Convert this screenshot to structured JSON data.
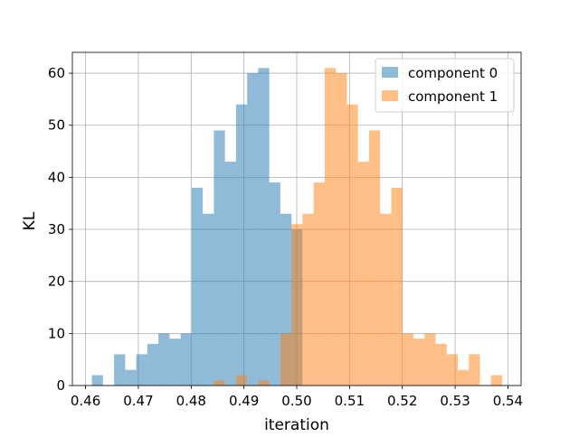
{
  "chart_data": {
    "type": "bar",
    "subtype": "overlapping-histogram",
    "xlabel": "iteration",
    "ylabel": "KL",
    "xlim": [
      0.4575,
      0.5425
    ],
    "ylim": [
      0,
      64
    ],
    "xticks": [
      0.46,
      0.47,
      0.48,
      0.49,
      0.5,
      0.51,
      0.52,
      0.53,
      0.54
    ],
    "xtick_labels": [
      "0.46",
      "0.47",
      "0.48",
      "0.49",
      "0.50",
      "0.51",
      "0.52",
      "0.53",
      "0.54"
    ],
    "yticks": [
      0,
      10,
      20,
      30,
      40,
      50,
      60
    ],
    "ytick_labels": [
      "0",
      "10",
      "20",
      "30",
      "40",
      "50",
      "60"
    ],
    "grid": true,
    "legend_position": "top-right",
    "bin_width": 0.0021,
    "series": [
      {
        "name": "component 0",
        "color": "#1f77b4",
        "alpha": 0.5,
        "bin_starts": [
          0.4612,
          0.4654,
          0.4675,
          0.4696,
          0.4717,
          0.4738,
          0.4759,
          0.478,
          0.4801,
          0.4822,
          0.4843,
          0.4864,
          0.4885,
          0.4906,
          0.4927,
          0.4948,
          0.4969,
          0.499
        ],
        "values": [
          2,
          6,
          3,
          6,
          8,
          10,
          9,
          10,
          38,
          33,
          49,
          43,
          54,
          60,
          61,
          39,
          33,
          30
        ]
      },
      {
        "name": "component 1",
        "color": "#ff7f0e",
        "alpha": 0.5,
        "bin_starts": [
          0.4843,
          0.4885,
          0.4927,
          0.4969,
          0.499,
          0.5011,
          0.5032,
          0.5053,
          0.5074,
          0.5095,
          0.5116,
          0.5137,
          0.5158,
          0.5179,
          0.52,
          0.5221,
          0.5242,
          0.5263,
          0.5284,
          0.5305,
          0.5326,
          0.5368
        ],
        "values": [
          1,
          2,
          1,
          10,
          31,
          33,
          39,
          61,
          60,
          54,
          43,
          49,
          33,
          38,
          10,
          9,
          10,
          8,
          6,
          3,
          6,
          2
        ]
      }
    ]
  }
}
